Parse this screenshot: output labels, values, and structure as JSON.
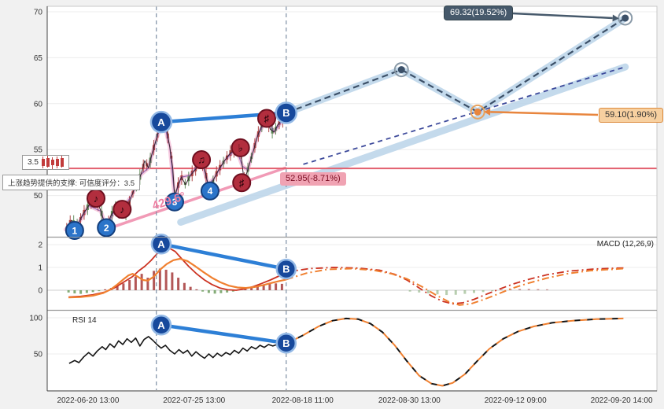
{
  "price_labels": {
    "target": "69.32(19.52%)",
    "mid": "59.10(1.90%)",
    "support": "52.95(-8.71%)",
    "angle": "429.6°"
  },
  "tooltips": {
    "score_chip": "3.5",
    "support_note": "上涨趋势提供的支撑: 可信度评分：3.5"
  },
  "indicator_labels": {
    "macd": "MACD (12,26,9)",
    "rsi": "RSI 14"
  },
  "axes": {
    "x_labels": [
      {
        "label": "2022-06-20 13:00",
        "f": 0.067
      },
      {
        "label": "2022-07-25 13:00",
        "f": 0.241
      },
      {
        "label": "2022-08-18 11:00",
        "f": 0.419
      },
      {
        "label": "2022-08-30 13:00",
        "f": 0.594
      },
      {
        "label": "2022-09-12 09:00",
        "f": 0.768
      },
      {
        "label": "2022-09-20 14:00",
        "f": 0.942
      }
    ],
    "vlines": [
      0.179,
      0.392
    ]
  },
  "colors": {
    "accent_blue": "#2d7fd6",
    "navy_marker": "#17499c",
    "num_marker": "#2b74c9",
    "red_marker": "#b22e3e",
    "support_red": "#e2606e",
    "orange": "#e8853d",
    "pink": "#ef8fae",
    "band_blue": "#bad3e9",
    "slate": "#46596b",
    "macd_red": "#cc3322",
    "macd_orange": "#f08030",
    "hist_pos": "#a63939",
    "hist_neg": "#6f9e5f"
  },
  "chart_data": [
    {
      "type": "candlestick",
      "panel": "price",
      "ylim": [
        45.6,
        70.6
      ],
      "yticks": [
        70,
        65,
        60,
        55,
        50
      ],
      "support_level": 52.95,
      "price_path": [
        [
          0.03,
          46.3
        ],
        [
          0.04,
          47.3
        ],
        [
          0.048,
          46.6
        ],
        [
          0.058,
          47.9
        ],
        [
          0.068,
          48.9
        ],
        [
          0.08,
          49.8
        ],
        [
          0.088,
          48.3
        ],
        [
          0.094,
          47.0
        ],
        [
          0.097,
          46.5
        ],
        [
          0.105,
          47.9
        ],
        [
          0.112,
          48.6
        ],
        [
          0.118,
          48.0
        ],
        [
          0.123,
          48.6
        ],
        [
          0.13,
          48.1
        ],
        [
          0.138,
          49.9
        ],
        [
          0.146,
          51.2
        ],
        [
          0.154,
          52.3
        ],
        [
          0.16,
          53.8
        ],
        [
          0.166,
          53.0
        ],
        [
          0.172,
          54.6
        ],
        [
          0.178,
          55.9
        ],
        [
          0.184,
          57.3
        ],
        [
          0.19,
          58.3
        ],
        [
          0.196,
          57.1
        ],
        [
          0.201,
          55.3
        ],
        [
          0.206,
          53.0
        ],
        [
          0.209,
          49.9
        ],
        [
          0.214,
          51.0
        ],
        [
          0.22,
          52.0
        ],
        [
          0.227,
          51.2
        ],
        [
          0.235,
          52.2
        ],
        [
          0.245,
          53.0
        ],
        [
          0.253,
          53.9
        ],
        [
          0.259,
          52.6
        ],
        [
          0.264,
          51.2
        ],
        [
          0.267,
          50.6
        ],
        [
          0.274,
          51.9
        ],
        [
          0.282,
          52.9
        ],
        [
          0.291,
          53.8
        ],
        [
          0.3,
          54.6
        ],
        [
          0.31,
          55.1
        ],
        [
          0.317,
          55.2
        ],
        [
          0.32,
          53.2
        ],
        [
          0.323,
          51.6
        ],
        [
          0.329,
          52.8
        ],
        [
          0.337,
          54.6
        ],
        [
          0.345,
          56.5
        ],
        [
          0.352,
          57.6
        ],
        [
          0.36,
          58.4
        ],
        [
          0.366,
          57.2
        ],
        [
          0.372,
          56.9
        ],
        [
          0.379,
          57.8
        ],
        [
          0.386,
          58.2
        ],
        [
          0.392,
          59.0
        ]
      ],
      "trend_ab": [
        [
          0.187,
          58.0
        ],
        [
          0.392,
          59.0
        ]
      ],
      "pink_trendline": [
        [
          0.1,
          46.4
        ],
        [
          0.39,
          53.0
        ]
      ],
      "projection_main": [
        [
          0.392,
          59.0
        ],
        [
          0.581,
          63.7
        ],
        [
          0.706,
          59.1
        ],
        [
          0.948,
          69.32
        ]
      ],
      "channel_line": [
        [
          0.42,
          53.4
        ],
        [
          0.948,
          64.0
        ]
      ],
      "channel_band": [
        [
          0.219,
          47.1
        ],
        [
          0.948,
          64.0
        ]
      ],
      "markers": [
        {
          "label": "1",
          "kind": "num",
          "f": 0.045,
          "v": 46.2
        },
        {
          "label": "♪",
          "kind": "note",
          "f": 0.08,
          "v": 49.7
        },
        {
          "label": "2",
          "kind": "num",
          "f": 0.097,
          "v": 46.5
        },
        {
          "label": "♪",
          "kind": "note",
          "f": 0.123,
          "v": 48.5
        },
        {
          "label": "A",
          "kind": "ab",
          "f": 0.187,
          "v": 58.0
        },
        {
          "label": "3",
          "kind": "num",
          "f": 0.209,
          "v": 49.3
        },
        {
          "label": "♫",
          "kind": "note",
          "f": 0.253,
          "v": 53.9
        },
        {
          "label": "4",
          "kind": "num",
          "f": 0.267,
          "v": 50.5
        },
        {
          "label": "♭",
          "kind": "note",
          "f": 0.317,
          "v": 55.2
        },
        {
          "label": "♯",
          "kind": "note",
          "f": 0.319,
          "v": 51.4
        },
        {
          "label": "♯",
          "kind": "note",
          "f": 0.36,
          "v": 58.4
        },
        {
          "label": "B",
          "kind": "ab",
          "f": 0.392,
          "v": 59.0
        }
      ],
      "ring_markers": [
        {
          "f": 0.581,
          "v": 63.7,
          "dot": "#3c5068",
          "ring": "#8a9aa8"
        },
        {
          "f": 0.706,
          "v": 59.1,
          "dot": "#e8853d",
          "ring": "#e8a25d"
        },
        {
          "f": 0.948,
          "v": 69.32,
          "dot": "#3c5068",
          "ring": "#8a9aa8"
        }
      ]
    },
    {
      "type": "macd",
      "panel": "macd",
      "ylim": [
        -0.83,
        2.28
      ],
      "yticks": [
        2,
        1,
        0
      ],
      "histogram": [
        [
          0.035,
          -0.1
        ],
        [
          0.045,
          -0.14
        ],
        [
          0.055,
          -0.16
        ],
        [
          0.065,
          -0.12
        ],
        [
          0.075,
          -0.08
        ],
        [
          0.085,
          -0.04
        ],
        [
          0.095,
          0.04
        ],
        [
          0.105,
          0.1
        ],
        [
          0.115,
          0.18
        ],
        [
          0.125,
          0.3
        ],
        [
          0.135,
          0.45
        ],
        [
          0.145,
          0.6
        ],
        [
          0.155,
          0.72
        ],
        [
          0.165,
          0.55
        ],
        [
          0.175,
          0.85
        ],
        [
          0.185,
          0.95
        ],
        [
          0.195,
          0.9
        ],
        [
          0.205,
          0.78
        ],
        [
          0.215,
          0.55
        ],
        [
          0.225,
          0.32
        ],
        [
          0.235,
          0.15
        ],
        [
          0.245,
          0.04
        ],
        [
          0.255,
          -0.06
        ],
        [
          0.265,
          -0.12
        ],
        [
          0.275,
          -0.15
        ],
        [
          0.285,
          -0.13
        ],
        [
          0.295,
          -0.1
        ],
        [
          0.305,
          -0.06
        ],
        [
          0.315,
          0.03
        ],
        [
          0.325,
          0.08
        ],
        [
          0.335,
          0.14
        ],
        [
          0.345,
          0.2
        ],
        [
          0.355,
          0.26
        ],
        [
          0.365,
          0.3
        ],
        [
          0.375,
          0.3
        ],
        [
          0.385,
          0.28
        ],
        [
          0.595,
          -0.06
        ],
        [
          0.61,
          -0.1
        ],
        [
          0.625,
          -0.14
        ],
        [
          0.64,
          -0.18
        ],
        [
          0.655,
          -0.21
        ],
        [
          0.67,
          -0.2
        ],
        [
          0.685,
          -0.16
        ],
        [
          0.7,
          -0.12
        ],
        [
          0.715,
          -0.08
        ],
        [
          0.73,
          -0.04
        ],
        [
          0.745,
          0.03
        ],
        [
          0.76,
          0.05
        ],
        [
          0.775,
          0.06
        ],
        [
          0.79,
          0.06
        ],
        [
          0.805,
          0.05
        ],
        [
          0.82,
          0.04
        ]
      ],
      "macd_line": [
        [
          0.035,
          -0.3
        ],
        [
          0.055,
          -0.27
        ],
        [
          0.075,
          -0.2
        ],
        [
          0.095,
          -0.08
        ],
        [
          0.11,
          0.1
        ],
        [
          0.125,
          0.35
        ],
        [
          0.14,
          0.6
        ],
        [
          0.15,
          0.85
        ],
        [
          0.16,
          1.05
        ],
        [
          0.17,
          1.3
        ],
        [
          0.18,
          1.6
        ],
        [
          0.19,
          1.8
        ],
        [
          0.2,
          1.85
        ],
        [
          0.21,
          1.7
        ],
        [
          0.22,
          1.4
        ],
        [
          0.232,
          1.05
        ],
        [
          0.245,
          0.72
        ],
        [
          0.258,
          0.45
        ],
        [
          0.27,
          0.25
        ],
        [
          0.283,
          0.1
        ],
        [
          0.296,
          0.02
        ],
        [
          0.31,
          0.0
        ],
        [
          0.324,
          0.06
        ],
        [
          0.338,
          0.16
        ],
        [
          0.352,
          0.3
        ],
        [
          0.366,
          0.45
        ],
        [
          0.38,
          0.62
        ],
        [
          0.392,
          0.8
        ]
      ],
      "macd_proj": [
        [
          0.392,
          0.8
        ],
        [
          0.43,
          0.95
        ],
        [
          0.47,
          1.0
        ],
        [
          0.51,
          0.97
        ],
        [
          0.545,
          0.88
        ],
        [
          0.57,
          0.7
        ],
        [
          0.59,
          0.45
        ],
        [
          0.61,
          0.1
        ],
        [
          0.63,
          -0.25
        ],
        [
          0.648,
          -0.48
        ],
        [
          0.665,
          -0.6
        ],
        [
          0.682,
          -0.55
        ],
        [
          0.7,
          -0.4
        ],
        [
          0.72,
          -0.18
        ],
        [
          0.742,
          0.05
        ],
        [
          0.765,
          0.28
        ],
        [
          0.79,
          0.48
        ],
        [
          0.82,
          0.68
        ],
        [
          0.855,
          0.84
        ],
        [
          0.895,
          0.93
        ],
        [
          0.945,
          0.98
        ]
      ],
      "signal_line": [
        [
          0.035,
          -0.32
        ],
        [
          0.055,
          -0.3
        ],
        [
          0.075,
          -0.24
        ],
        [
          0.092,
          -0.12
        ],
        [
          0.105,
          0.05
        ],
        [
          0.115,
          0.25
        ],
        [
          0.125,
          0.48
        ],
        [
          0.133,
          0.65
        ],
        [
          0.14,
          0.72
        ],
        [
          0.148,
          0.6
        ],
        [
          0.157,
          0.45
        ],
        [
          0.165,
          0.42
        ],
        [
          0.175,
          0.6
        ],
        [
          0.185,
          0.9
        ],
        [
          0.196,
          1.15
        ],
        [
          0.207,
          1.32
        ],
        [
          0.218,
          1.38
        ],
        [
          0.23,
          1.28
        ],
        [
          0.243,
          1.05
        ],
        [
          0.256,
          0.8
        ],
        [
          0.27,
          0.55
        ],
        [
          0.284,
          0.35
        ],
        [
          0.298,
          0.2
        ],
        [
          0.312,
          0.12
        ],
        [
          0.326,
          0.1
        ],
        [
          0.34,
          0.14
        ],
        [
          0.354,
          0.22
        ],
        [
          0.368,
          0.32
        ],
        [
          0.38,
          0.4
        ],
        [
          0.392,
          0.47
        ]
      ],
      "signal_proj": [
        [
          0.392,
          0.47
        ],
        [
          0.425,
          0.75
        ],
        [
          0.46,
          0.92
        ],
        [
          0.5,
          0.95
        ],
        [
          0.535,
          0.88
        ],
        [
          0.565,
          0.72
        ],
        [
          0.59,
          0.5
        ],
        [
          0.615,
          0.15
        ],
        [
          0.638,
          -0.22
        ],
        [
          0.658,
          -0.5
        ],
        [
          0.676,
          -0.65
        ],
        [
          0.695,
          -0.6
        ],
        [
          0.715,
          -0.42
        ],
        [
          0.738,
          -0.18
        ],
        [
          0.762,
          0.08
        ],
        [
          0.788,
          0.3
        ],
        [
          0.818,
          0.52
        ],
        [
          0.852,
          0.72
        ],
        [
          0.89,
          0.86
        ],
        [
          0.945,
          0.95
        ]
      ],
      "trend_ab": [
        [
          0.187,
          2.03
        ],
        [
          0.392,
          0.93
        ]
      ],
      "markers": [
        {
          "label": "A",
          "kind": "ab",
          "f": 0.187,
          "v": 2.03
        },
        {
          "label": "B",
          "kind": "ab",
          "f": 0.392,
          "v": 0.93
        }
      ]
    },
    {
      "type": "rsi",
      "panel": "rsi",
      "ylim": [
        0,
        108.7
      ],
      "yticks": [
        100,
        50
      ],
      "rsi_line": [
        [
          0.036,
          37
        ],
        [
          0.045,
          41
        ],
        [
          0.052,
          38
        ],
        [
          0.06,
          46
        ],
        [
          0.068,
          52
        ],
        [
          0.075,
          47
        ],
        [
          0.082,
          54
        ],
        [
          0.09,
          60
        ],
        [
          0.096,
          56
        ],
        [
          0.103,
          64
        ],
        [
          0.11,
          59
        ],
        [
          0.117,
          68
        ],
        [
          0.124,
          63
        ],
        [
          0.131,
          71
        ],
        [
          0.138,
          66
        ],
        [
          0.145,
          72
        ],
        [
          0.152,
          61
        ],
        [
          0.159,
          70
        ],
        [
          0.166,
          74
        ],
        [
          0.173,
          69
        ],
        [
          0.18,
          63
        ],
        [
          0.187,
          58
        ],
        [
          0.194,
          62
        ],
        [
          0.201,
          55
        ],
        [
          0.209,
          50
        ],
        [
          0.216,
          56
        ],
        [
          0.223,
          51
        ],
        [
          0.23,
          55
        ],
        [
          0.237,
          47
        ],
        [
          0.244,
          53
        ],
        [
          0.251,
          48
        ],
        [
          0.258,
          44
        ],
        [
          0.265,
          50
        ],
        [
          0.272,
          45
        ],
        [
          0.279,
          51
        ],
        [
          0.286,
          47
        ],
        [
          0.293,
          52
        ],
        [
          0.3,
          49
        ],
        [
          0.307,
          55
        ],
        [
          0.314,
          51
        ],
        [
          0.321,
          58
        ],
        [
          0.328,
          54
        ],
        [
          0.335,
          60
        ],
        [
          0.342,
          57
        ],
        [
          0.349,
          62
        ],
        [
          0.356,
          59
        ],
        [
          0.363,
          63
        ],
        [
          0.37,
          61
        ],
        [
          0.377,
          63
        ],
        [
          0.385,
          62
        ],
        [
          0.392,
          64
        ]
      ],
      "rsi_proj": [
        [
          0.392,
          64
        ],
        [
          0.42,
          76
        ],
        [
          0.445,
          88
        ],
        [
          0.468,
          96
        ],
        [
          0.49,
          99
        ],
        [
          0.51,
          98
        ],
        [
          0.53,
          92
        ],
        [
          0.55,
          80
        ],
        [
          0.57,
          62
        ],
        [
          0.59,
          40
        ],
        [
          0.61,
          20
        ],
        [
          0.63,
          9
        ],
        [
          0.648,
          6
        ],
        [
          0.665,
          10
        ],
        [
          0.685,
          22
        ],
        [
          0.705,
          40
        ],
        [
          0.725,
          57
        ],
        [
          0.748,
          71
        ],
        [
          0.772,
          81
        ],
        [
          0.798,
          88
        ],
        [
          0.828,
          93
        ],
        [
          0.862,
          96
        ],
        [
          0.9,
          98
        ],
        [
          0.945,
          99
        ]
      ],
      "trend_ab": [
        [
          0.187,
          90
        ],
        [
          0.392,
          65
        ]
      ],
      "markers": [
        {
          "label": "A",
          "kind": "ab",
          "f": 0.187,
          "v": 90
        },
        {
          "label": "B",
          "kind": "ab",
          "f": 0.392,
          "v": 65
        }
      ]
    }
  ]
}
